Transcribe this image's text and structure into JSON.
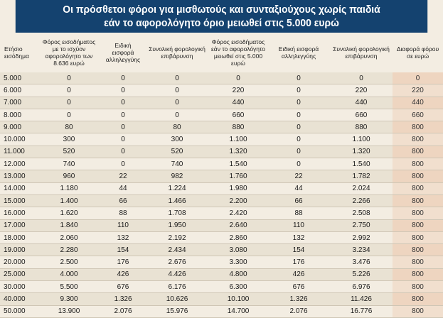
{
  "title": {
    "line1": "Οι πρόσθετοι φόροι για μισθωτούς και συνταξιούχους χωρίς παιδιά",
    "line2": "εάν το αφορολόγητο όριο μειωθεί στις 5.000 ευρώ"
  },
  "columns": [
    "Ετήσιο εισόδημα",
    "Φόρος εισοδήματος με το ισχύον αφορολόγητο των 8.636 ευρώ",
    "Ειδική εισφορά αλληλεγγύης",
    "Συνολική φορολογική επιβάρυνση",
    "Φόρος εισοδήματος εάν το αφορολόγητο μειωθεί στις 5.000 ευρώ",
    "Ειδική εισφορά αλληλεγγύης",
    "Συνολική φορολογική επιβάρυνση",
    "Διαφορά φόρου σε ευρώ"
  ],
  "rows": [
    [
      "5.000",
      "0",
      "0",
      "0",
      "0",
      "0",
      "0",
      "0"
    ],
    [
      "6.000",
      "0",
      "0",
      "0",
      "220",
      "0",
      "220",
      "220"
    ],
    [
      "7.000",
      "0",
      "0",
      "0",
      "440",
      "0",
      "440",
      "440"
    ],
    [
      "8.000",
      "0",
      "0",
      "0",
      "660",
      "0",
      "660",
      "660"
    ],
    [
      "9.000",
      "80",
      "0",
      "80",
      "880",
      "0",
      "880",
      "800"
    ],
    [
      "10.000",
      "300",
      "0",
      "300",
      "1.100",
      "0",
      "1.100",
      "800"
    ],
    [
      "11.000",
      "520",
      "0",
      "520",
      "1.320",
      "0",
      "1.320",
      "800"
    ],
    [
      "12.000",
      "740",
      "0",
      "740",
      "1.540",
      "0",
      "1.540",
      "800"
    ],
    [
      "13.000",
      "960",
      "22",
      "982",
      "1.760",
      "22",
      "1.782",
      "800"
    ],
    [
      "14.000",
      "1.180",
      "44",
      "1.224",
      "1.980",
      "44",
      "2.024",
      "800"
    ],
    [
      "15.000",
      "1.400",
      "66",
      "1.466",
      "2.200",
      "66",
      "2.266",
      "800"
    ],
    [
      "16.000",
      "1.620",
      "88",
      "1.708",
      "2.420",
      "88",
      "2.508",
      "800"
    ],
    [
      "17.000",
      "1.840",
      "110",
      "1.950",
      "2.640",
      "110",
      "2.750",
      "800"
    ],
    [
      "18.000",
      "2.060",
      "132",
      "2.192",
      "2.860",
      "132",
      "2.992",
      "800"
    ],
    [
      "19.000",
      "2.280",
      "154",
      "2.434",
      "3.080",
      "154",
      "3.234",
      "800"
    ],
    [
      "20.000",
      "2.500",
      "176",
      "2.676",
      "3.300",
      "176",
      "3.476",
      "800"
    ],
    [
      "25.000",
      "4.000",
      "426",
      "4.426",
      "4.800",
      "426",
      "5.226",
      "800"
    ],
    [
      "30.000",
      "5.500",
      "676",
      "6.176",
      "6.300",
      "676",
      "6.976",
      "800"
    ],
    [
      "40.000",
      "9.300",
      "1.326",
      "10.626",
      "10.100",
      "1.326",
      "11.426",
      "800"
    ],
    [
      "50.000",
      "13.900",
      "2.076",
      "15.976",
      "14.700",
      "2.076",
      "16.776",
      "800"
    ]
  ]
}
